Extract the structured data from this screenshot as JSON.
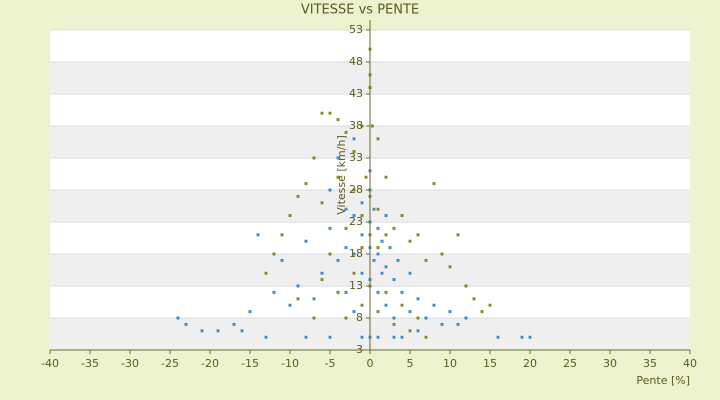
{
  "chart_data": {
    "type": "scatter",
    "title": "VITESSE vs PENTE",
    "x_label": "Pente [%]",
    "y_label": "Vitesse [km/h]",
    "xlim": [
      -40,
      40
    ],
    "xticks": [
      -40,
      -35,
      -30,
      -25,
      -20,
      -15,
      -10,
      -5,
      0,
      5,
      10,
      15,
      20,
      25,
      30,
      35,
      40
    ],
    "ylim": [
      3,
      53
    ],
    "yticks": [
      3,
      8,
      13,
      18,
      23,
      28,
      33,
      38,
      43,
      48,
      53
    ],
    "grid": true,
    "series": [
      {
        "color": "#3a8fd9",
        "x": [
          -24,
          -23,
          -21,
          -19,
          -17,
          -15,
          -14,
          -12,
          -11,
          -10,
          -9,
          -8,
          -7,
          -6,
          -5,
          -5,
          -4,
          -4,
          -3,
          -3,
          -2,
          -2,
          -2,
          -1,
          -1,
          -1,
          -1,
          0,
          0,
          0,
          0,
          0,
          0.5,
          0.5,
          1,
          1,
          1,
          1,
          1.5,
          1.5,
          2,
          2,
          2,
          2.5,
          3,
          3,
          3.5,
          4,
          4,
          5,
          5,
          6,
          7,
          8,
          9,
          10,
          11,
          12,
          16,
          19,
          20,
          -16,
          -13,
          -8,
          -5,
          3,
          6,
          -3,
          0,
          -2
        ],
        "values": [
          8,
          7,
          6,
          6,
          7,
          9,
          21,
          12,
          17,
          10,
          13,
          20,
          11,
          15,
          28,
          22,
          17,
          33,
          19,
          12,
          24,
          18,
          9,
          26,
          21,
          15,
          5,
          28,
          23,
          19,
          14,
          5,
          25,
          17,
          22,
          18,
          12,
          5,
          20,
          15,
          24,
          16,
          10,
          19,
          14,
          8,
          17,
          12,
          5,
          15,
          9,
          11,
          8,
          10,
          7,
          9,
          7,
          8,
          5,
          5,
          5,
          6,
          5,
          5,
          5,
          5,
          6,
          25,
          31,
          36
        ]
      },
      {
        "color": "#8c8c1e",
        "x": [
          -6,
          -5,
          -4,
          -3,
          -2,
          -1,
          0,
          0,
          0,
          0.3,
          -0.5,
          1,
          -7,
          -8,
          -9,
          -10,
          -11,
          -12,
          -13,
          -6,
          -4,
          -3,
          -2,
          -1,
          0,
          1,
          2,
          3,
          4,
          5,
          6,
          7,
          8,
          9,
          10,
          11,
          12,
          13,
          14,
          15,
          -5,
          -4,
          -3,
          -2,
          -1,
          0,
          1,
          2,
          3,
          4,
          5,
          6,
          7,
          -9,
          -7,
          -6,
          1,
          2,
          -1,
          0
        ],
        "values": [
          40,
          40,
          39,
          37,
          34,
          38,
          50,
          46,
          44,
          38,
          30,
          36,
          33,
          29,
          27,
          24,
          21,
          18,
          15,
          26,
          30,
          22,
          28,
          24,
          27,
          25,
          30,
          22,
          24,
          20,
          21,
          17,
          29,
          18,
          16,
          21,
          13,
          11,
          9,
          10,
          18,
          12,
          8,
          15,
          10,
          13,
          9,
          12,
          7,
          10,
          6,
          8,
          5,
          11,
          8,
          14,
          19,
          21,
          19,
          21
        ]
      }
    ]
  }
}
